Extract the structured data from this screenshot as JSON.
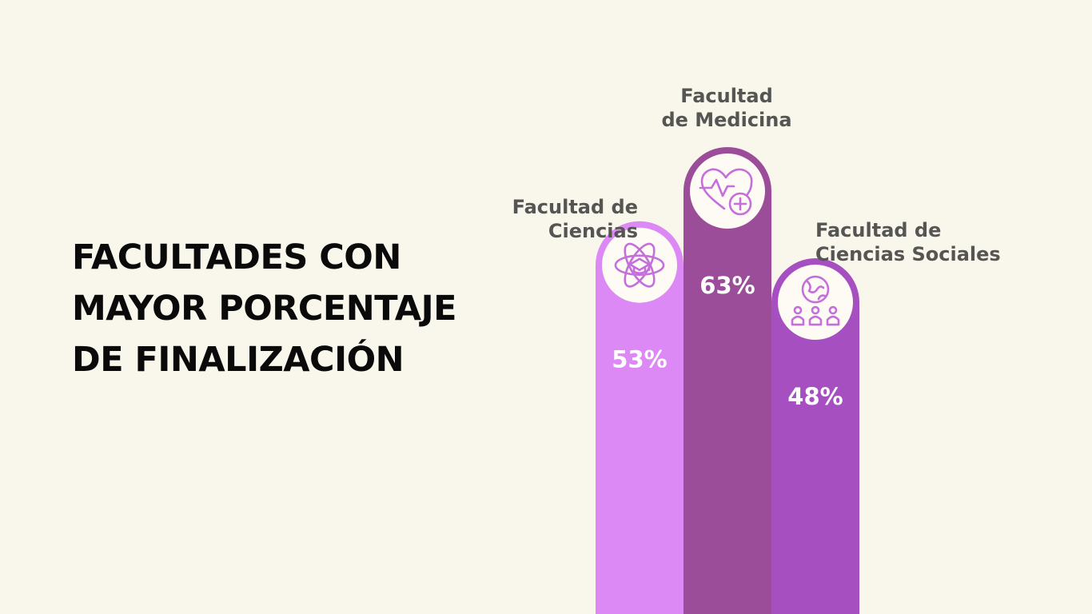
{
  "title_lines": [
    "FACULTADES CON",
    "MAYOR PORCENTAJE",
    "DE FINALIZACIÓN"
  ],
  "chart_data": {
    "type": "bar",
    "categories": [
      "Facultad de Ciencias",
      "Facultad de Medicina",
      "Facultad de Ciencias Sociales"
    ],
    "label_lines": [
      [
        "Facultad de",
        "Ciencias"
      ],
      [
        "Facultad",
        "de Medicina"
      ],
      [
        "Facultad de",
        "Ciencias Sociales"
      ]
    ],
    "values": [
      53,
      63,
      48
    ],
    "value_labels": [
      "53%",
      "63%",
      "48%"
    ],
    "colors": [
      "#dc88f5",
      "#9c4d99",
      "#a54fc1"
    ],
    "icon_color": "#c46fdc",
    "icons": [
      "atom-graduation-cap-icon",
      "heart-medical-cross-icon",
      "globe-people-icon"
    ],
    "grid": false,
    "legend": "none"
  }
}
